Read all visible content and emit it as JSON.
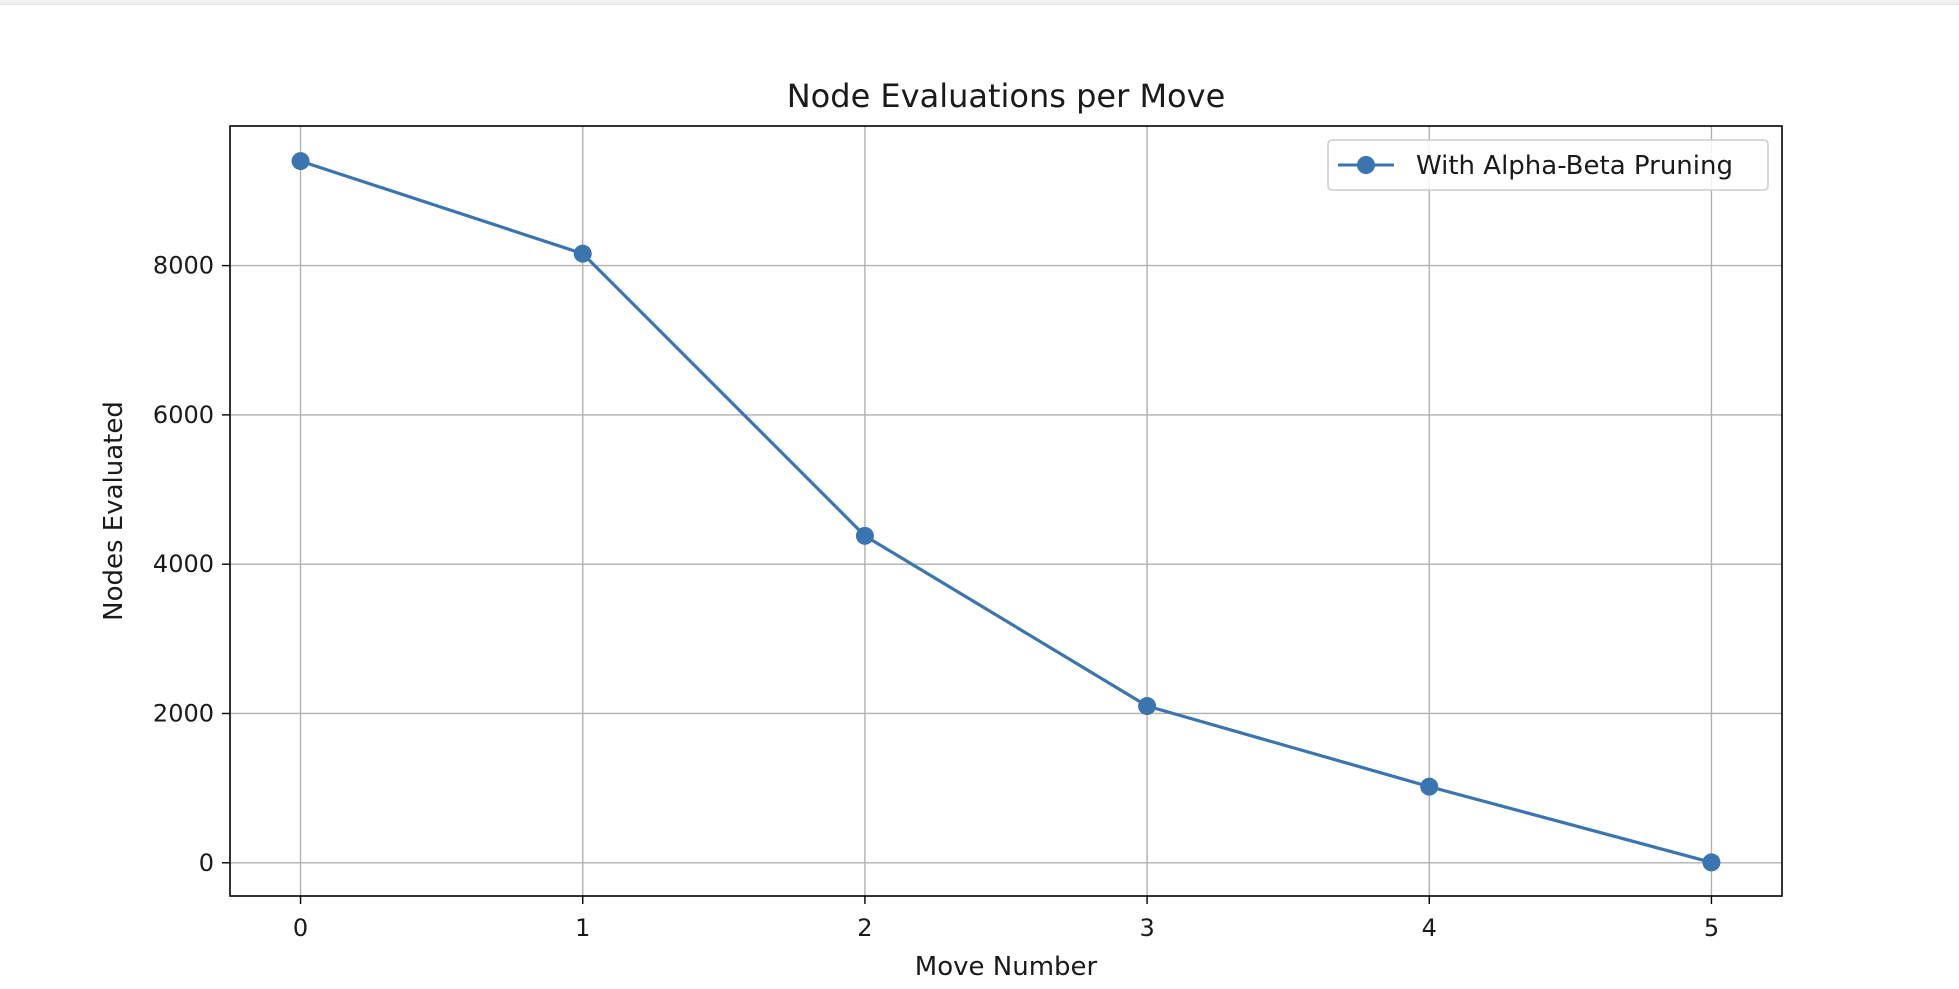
{
  "chart_data": {
    "type": "line",
    "title": "Node Evaluations per Move",
    "xlabel": "Move Number",
    "ylabel": "Nodes Evaluated",
    "x": [
      0,
      1,
      2,
      3,
      4,
      5
    ],
    "series": [
      {
        "name": "With Alpha-Beta Pruning",
        "values": [
          9400,
          8160,
          4380,
          2100,
          1020,
          5
        ],
        "color": "#3a75b0"
      }
    ],
    "xticks": [
      "0",
      "1",
      "2",
      "3",
      "4",
      "5"
    ],
    "yticks": [
      "0",
      "2000",
      "4000",
      "6000",
      "8000"
    ],
    "xlim": [
      -0.25,
      5.25
    ],
    "ylim": [
      -445,
      9870
    ],
    "grid": true,
    "legend": "top-right"
  }
}
